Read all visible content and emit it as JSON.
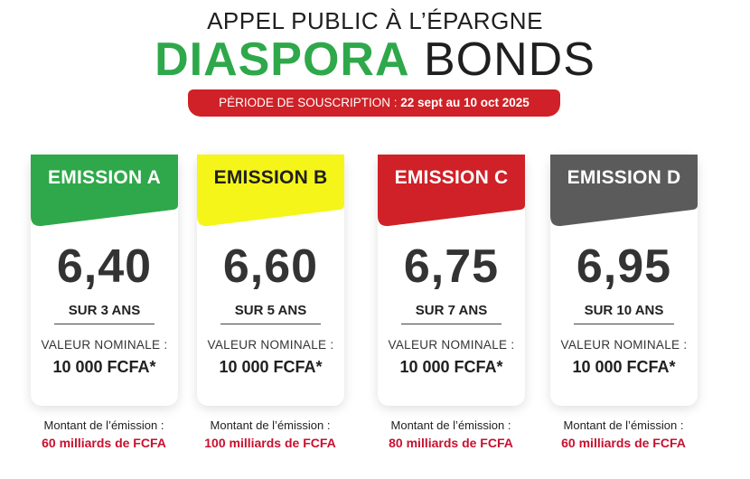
{
  "header": {
    "top_line": "APPEL PUBLIC À L’ÉPARGNE",
    "title_part1": "DIASPORA",
    "title_part2": "BONDS",
    "period_label": "PÉRIODE DE SOUSCRIPTION :",
    "period_dates": "22 sept au 10 oct 2025"
  },
  "colors": {
    "green": "#2ea84a",
    "yellow": "#f5f51a",
    "red": "#cf2127",
    "gray": "#5b5b5b"
  },
  "emissions": [
    {
      "label": "EMISSION A",
      "rate": "6,40",
      "term": "SUR 3 ANS",
      "nominal_label": "VALEUR NOMINALE :",
      "nominal_value": "10 000 FCFA*",
      "amount_label": "Montant de l’émission :",
      "amount_value": "60 milliards de FCFA"
    },
    {
      "label": "EMISSION B",
      "rate": "6,60",
      "term": "SUR 5 ANS",
      "nominal_label": "VALEUR NOMINALE :",
      "nominal_value": "10 000 FCFA*",
      "amount_label": "Montant de l’émission :",
      "amount_value": "100 milliards de FCFA"
    },
    {
      "label": "EMISSION C",
      "rate": "6,75",
      "term": "SUR 7 ANS",
      "nominal_label": "VALEUR NOMINALE :",
      "nominal_value": "10 000 FCFA*",
      "amount_label": "Montant de l’émission :",
      "amount_value": "80 milliards de FCFA"
    },
    {
      "label": "EMISSION D",
      "rate": "6,95",
      "term": "SUR 10 ANS",
      "nominal_label": "VALEUR NOMINALE :",
      "nominal_value": "10 000 FCFA*",
      "amount_label": "Montant de l’émission :",
      "amount_value": "60 milliards de FCFA"
    }
  ]
}
